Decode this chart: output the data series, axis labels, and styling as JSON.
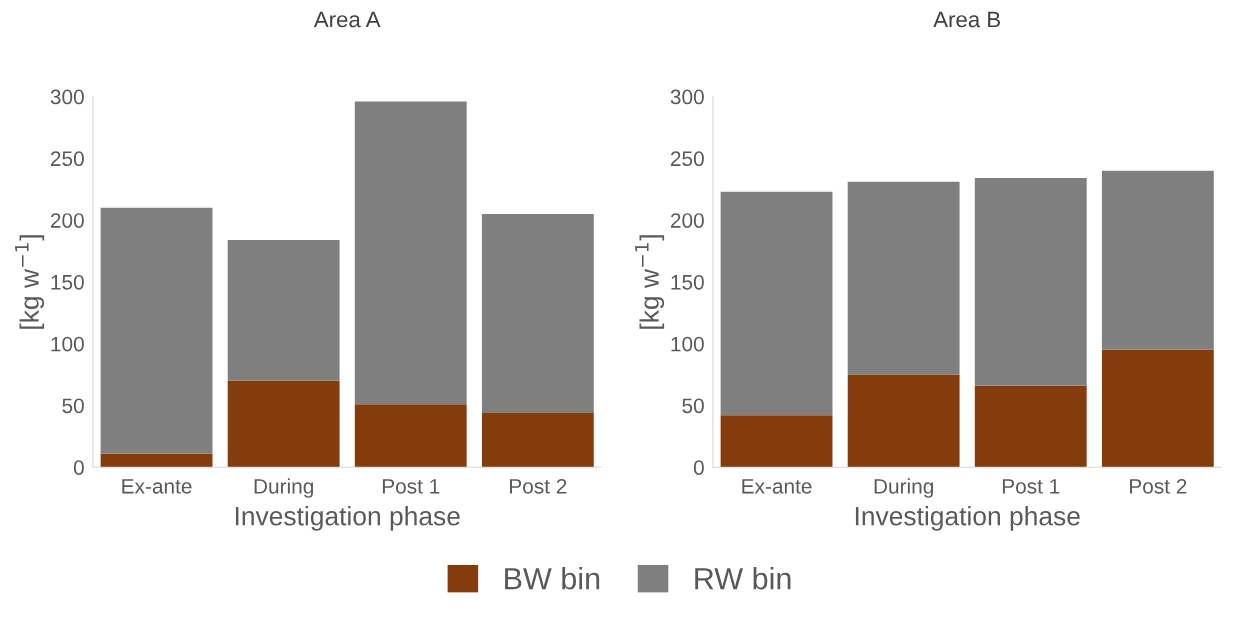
{
  "chart_data": [
    {
      "type": "bar",
      "title": "Area A",
      "xlabel": "Investigation phase",
      "ylabel": "[kg w$^{−1}$]",
      "categories": [
        "Ex-ante",
        "During",
        "Post 1",
        "Post 2"
      ],
      "stacked": true,
      "ylim": [
        0,
        300
      ],
      "yticks": [
        0,
        50,
        100,
        150,
        200,
        250,
        300
      ],
      "legend": "bottom",
      "series": [
        {
          "name": "BW bin",
          "color": "#843c0c",
          "values": [
            11,
            70,
            51,
            44
          ]
        },
        {
          "name": "RW bin",
          "color": "#7f7f7f",
          "values": [
            199,
            114,
            245,
            161
          ]
        }
      ]
    },
    {
      "type": "bar",
      "title": "Area B",
      "xlabel": "Investigation phase",
      "ylabel": "[kg w$^{−1}$]",
      "categories": [
        "Ex-ante",
        "During",
        "Post 1",
        "Post 2"
      ],
      "stacked": true,
      "ylim": [
        0,
        300
      ],
      "yticks": [
        0,
        50,
        100,
        150,
        200,
        250,
        300
      ],
      "series": [
        {
          "color": "#843c0c",
          "values": [
            42,
            75,
            66,
            95
          ]
        },
        {
          "color": "#7f7f7f",
          "values": [
            181,
            156,
            168,
            145
          ]
        }
      ]
    }
  ]
}
